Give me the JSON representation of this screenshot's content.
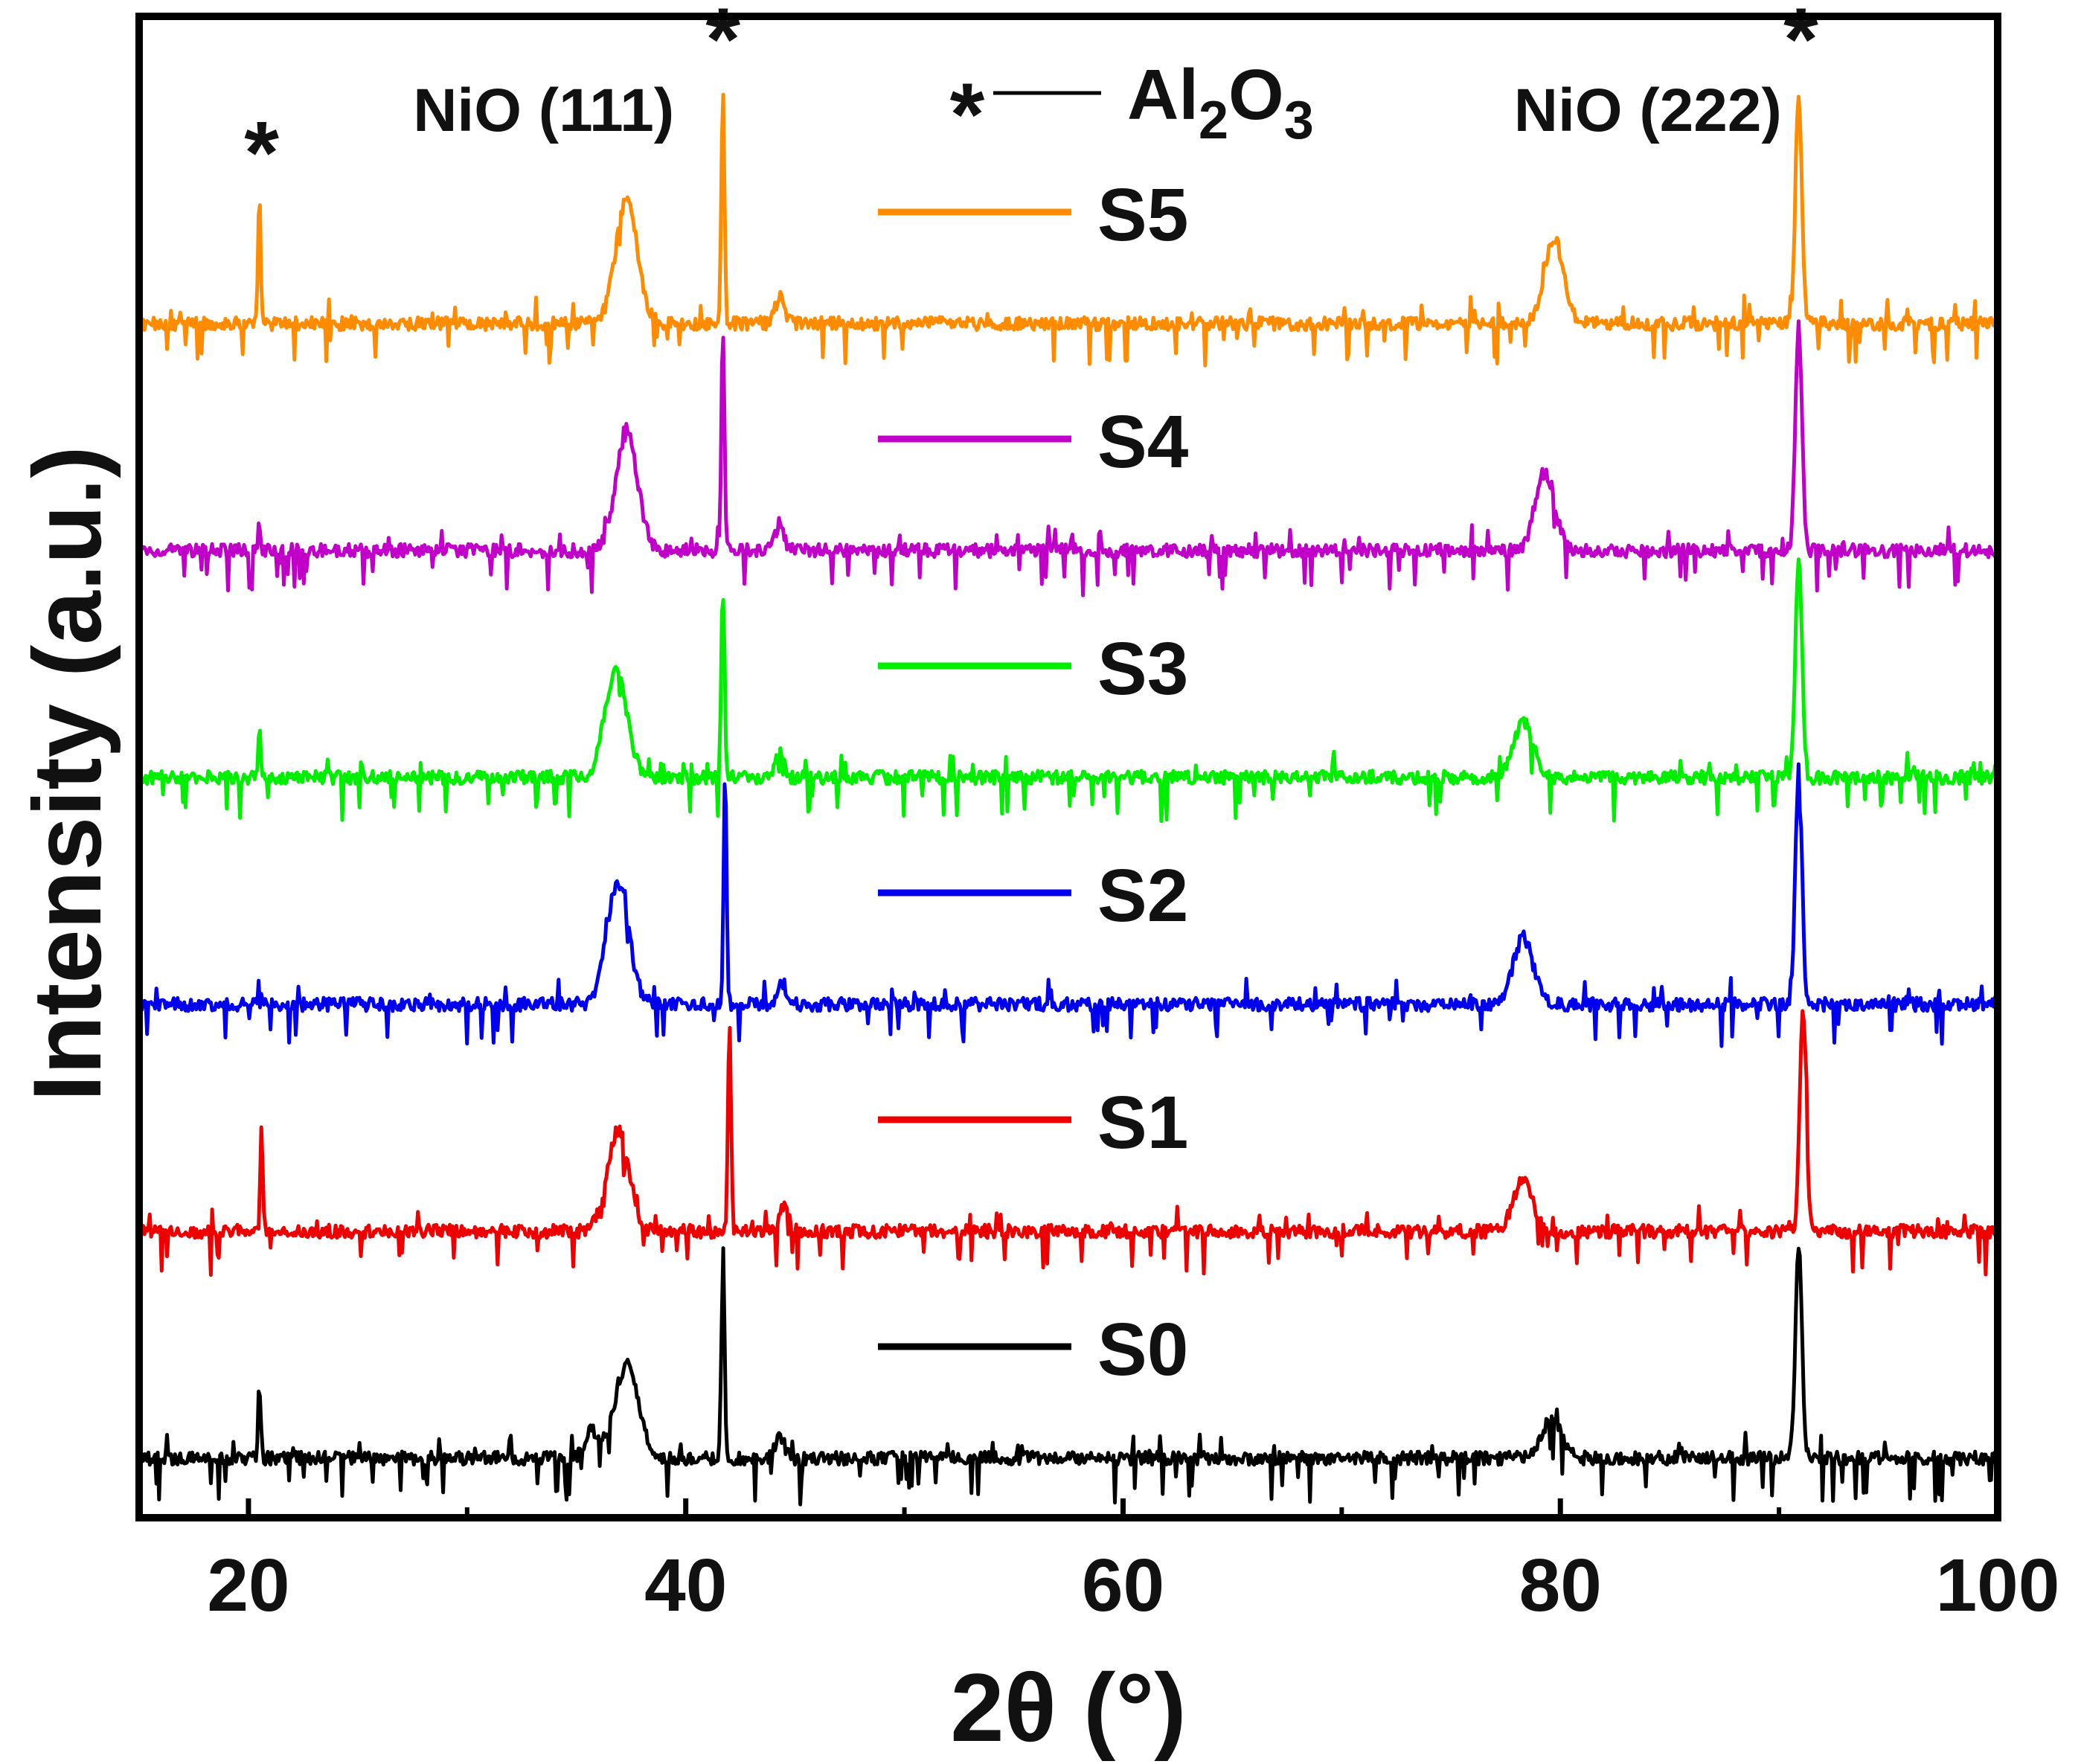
{
  "chart_data": {
    "type": "line",
    "title": "",
    "xlabel": "2θ (°)",
    "ylabel": "Intensity (a.u.)",
    "xlim": [
      15,
      100
    ],
    "x_ticks": [
      20,
      40,
      60,
      80,
      100
    ],
    "x_minor_ticks": [
      30,
      50,
      70,
      90
    ],
    "grid": false,
    "legend_position": "top-center, stacked beside traces",
    "series": [
      {
        "name": "S5",
        "color": "#ff8c00",
        "offset": 5,
        "peaks": [
          {
            "x": 20.5,
            "h": 0.55,
            "w": 0.06
          },
          {
            "x": 37.3,
            "h": 0.55,
            "w": 0.5
          },
          {
            "x": 41.7,
            "h": 1.05,
            "w": 0.07
          },
          {
            "x": 44.3,
            "h": 0.12,
            "w": 0.2
          },
          {
            "x": 79.7,
            "h": 0.38,
            "w": 0.45
          },
          {
            "x": 90.9,
            "h": 1.0,
            "w": 0.15
          }
        ]
      },
      {
        "name": "S4",
        "color": "#c000c8",
        "offset": 4,
        "peaks": [
          {
            "x": 20.5,
            "h": 0.12,
            "w": 0.06
          },
          {
            "x": 37.3,
            "h": 0.52,
            "w": 0.5
          },
          {
            "x": 41.7,
            "h": 1.0,
            "w": 0.07
          },
          {
            "x": 44.3,
            "h": 0.12,
            "w": 0.2
          },
          {
            "x": 79.3,
            "h": 0.35,
            "w": 0.45
          },
          {
            "x": 90.9,
            "h": 1.0,
            "w": 0.15
          }
        ]
      },
      {
        "name": "S3",
        "color": "#00ee00",
        "offset": 3,
        "peaks": [
          {
            "x": 20.5,
            "h": 0.2,
            "w": 0.06
          },
          {
            "x": 36.8,
            "h": 0.48,
            "w": 0.5
          },
          {
            "x": 41.7,
            "h": 0.95,
            "w": 0.07
          },
          {
            "x": 44.3,
            "h": 0.12,
            "w": 0.2
          },
          {
            "x": 78.3,
            "h": 0.25,
            "w": 0.45
          },
          {
            "x": 90.9,
            "h": 1.0,
            "w": 0.15
          }
        ]
      },
      {
        "name": "S2",
        "color": "#0000ee",
        "offset": 2,
        "peaks": [
          {
            "x": 20.5,
            "h": 0.12,
            "w": 0.06
          },
          {
            "x": 36.9,
            "h": 0.55,
            "w": 0.5
          },
          {
            "x": 41.8,
            "h": 1.05,
            "w": 0.07
          },
          {
            "x": 44.4,
            "h": 0.1,
            "w": 0.2
          },
          {
            "x": 78.3,
            "h": 0.3,
            "w": 0.45
          },
          {
            "x": 90.9,
            "h": 1.05,
            "w": 0.15
          }
        ]
      },
      {
        "name": "S1",
        "color": "#ee0000",
        "offset": 1,
        "peaks": [
          {
            "x": 20.6,
            "h": 0.45,
            "w": 0.06
          },
          {
            "x": 36.9,
            "h": 0.45,
            "w": 0.5
          },
          {
            "x": 42.0,
            "h": 0.95,
            "w": 0.07
          },
          {
            "x": 44.5,
            "h": 0.12,
            "w": 0.2
          },
          {
            "x": 78.3,
            "h": 0.22,
            "w": 0.45
          },
          {
            "x": 91.1,
            "h": 1.0,
            "w": 0.15
          }
        ]
      },
      {
        "name": "S0",
        "color": "#000000",
        "offset": 0,
        "peaks": [
          {
            "x": 20.5,
            "h": 0.32,
            "w": 0.06
          },
          {
            "x": 35.7,
            "h": 0.12,
            "w": 0.3
          },
          {
            "x": 37.3,
            "h": 0.42,
            "w": 0.55
          },
          {
            "x": 41.7,
            "h": 0.95,
            "w": 0.07
          },
          {
            "x": 44.3,
            "h": 0.1,
            "w": 0.2
          },
          {
            "x": 79.6,
            "h": 0.18,
            "w": 0.45
          },
          {
            "x": 90.9,
            "h": 0.95,
            "w": 0.15
          }
        ]
      }
    ],
    "annotations": [
      {
        "text": "NiO (111)",
        "x": 33.5,
        "level": 5.85
      },
      {
        "text": "NiO (222)",
        "x": 84,
        "level": 5.85
      },
      {
        "text": "*",
        "x": 20.6,
        "level": 5.75
      },
      {
        "text": "*",
        "x": 41.7,
        "level": 6.25
      },
      {
        "text": "*",
        "x": 91.0,
        "level": 6.25
      }
    ],
    "marker_legend": {
      "symbol": "*",
      "label_parts": [
        "Al",
        "2",
        "O",
        "3"
      ]
    }
  },
  "colors": {
    "axis": "#000000",
    "text": "#111111",
    "background": "#ffffff"
  }
}
